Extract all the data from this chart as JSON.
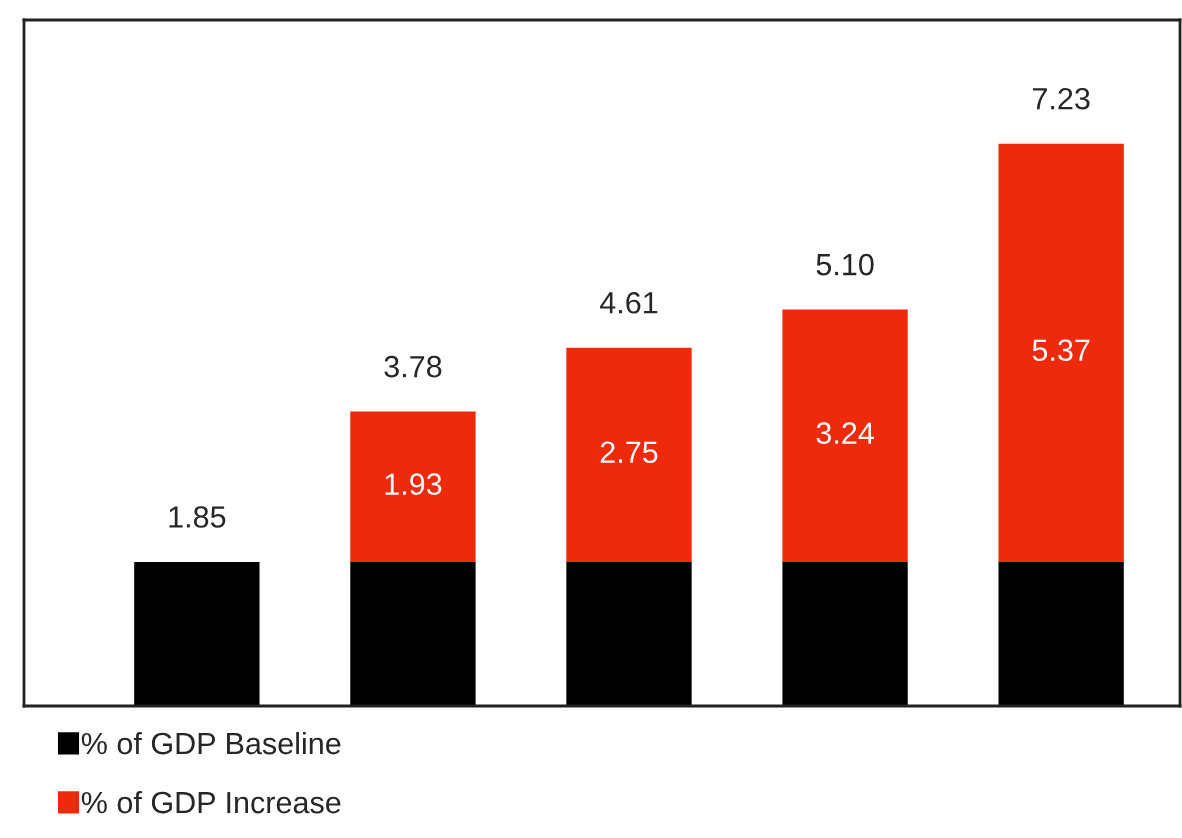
{
  "chart_data": {
    "type": "bar",
    "stacked": true,
    "categories": [
      null,
      null,
      null,
      null,
      null
    ],
    "series": [
      {
        "name": "% of GDP Baseline",
        "color": "#000000",
        "values": [
          1.85,
          1.85,
          1.85,
          1.85,
          1.85
        ]
      },
      {
        "name": "% of GDP Increase",
        "color": "#ee2a0c",
        "values": [
          null,
          1.93,
          2.75,
          3.24,
          5.37
        ],
        "value_labels": [
          null,
          "1.93",
          "2.75",
          "3.24",
          "5.37"
        ]
      }
    ],
    "totals": [
      "1.85",
      "3.78",
      "4.61",
      "5.10",
      "7.23"
    ],
    "legend": "bottom left"
  }
}
